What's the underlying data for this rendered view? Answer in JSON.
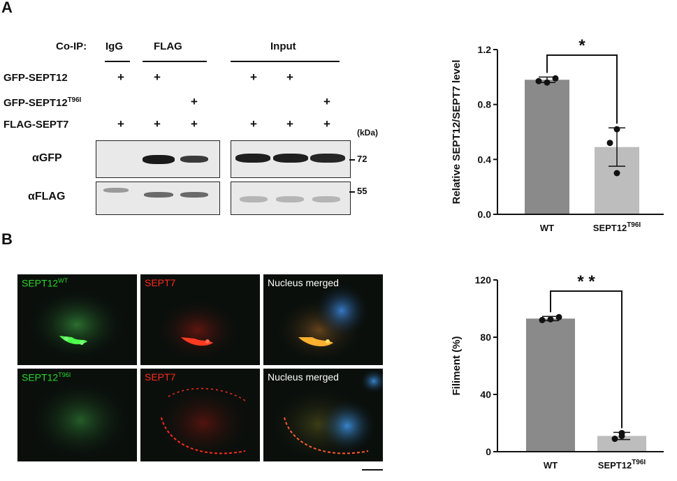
{
  "panelA": {
    "letter": "A",
    "coip": "Co-IP:",
    "igg": "IgG",
    "flag": "FLAG",
    "input": "Input",
    "rows": {
      "gfp_sept12": "GFP-SEPT12",
      "gfp_mut_base": "GFP-SEPT12",
      "gfp_mut_sup": "T96I",
      "flag_sept7": "FLAG-SEPT7"
    },
    "plus": "+",
    "kda": "(kDa)",
    "blots": {
      "gfp": "αGFP",
      "flag": "αFLAG"
    },
    "mw": {
      "gfp": "72",
      "flag": "55"
    }
  },
  "panelB": {
    "letter": "B",
    "images": {
      "wt_green_base": "SEPT12",
      "wt_green_sup": "WT",
      "wt_red": "SEPT7",
      "wt_merge": "Nucleus merged",
      "mut_green_base": "SEPT12",
      "mut_green_sup": "T96I",
      "mut_red": "SEPT7",
      "mut_merge": "Nucleus merged"
    }
  },
  "colors": {
    "bar_wt": "#8a8a8a",
    "bar_mut": "#bdbdbd",
    "green": "#2bd62b",
    "red": "#ff2a1a"
  },
  "chart_data": [
    {
      "type": "bar",
      "categories": [
        "WT",
        "SEPT12"
      ],
      "category_sups": [
        "",
        "T96I"
      ],
      "values": [
        0.98,
        0.49
      ],
      "errors": [
        0.02,
        0.14
      ],
      "points": [
        [
          0.97,
          0.99,
          0.96
        ],
        [
          0.62,
          0.52,
          0.3
        ]
      ],
      "ylabel": "Relative SEPT12/SEPT7 level",
      "ylim": [
        0,
        1.2
      ],
      "yticks": [
        "0.0",
        "0.4",
        "0.8",
        "1.2"
      ],
      "significance": "*"
    },
    {
      "type": "bar",
      "categories": [
        "WT",
        "SEPT12"
      ],
      "category_sups": [
        "",
        "T96I"
      ],
      "values": [
        93,
        11
      ],
      "errors": [
        1.5,
        2.5
      ],
      "points": [
        [
          92,
          94,
          92.5
        ],
        [
          13,
          9,
          11
        ]
      ],
      "ylabel": "Filiment (%)",
      "ylim": [
        0,
        120
      ],
      "yticks": [
        "0",
        "40",
        "80",
        "120"
      ],
      "significance": "* *"
    }
  ]
}
